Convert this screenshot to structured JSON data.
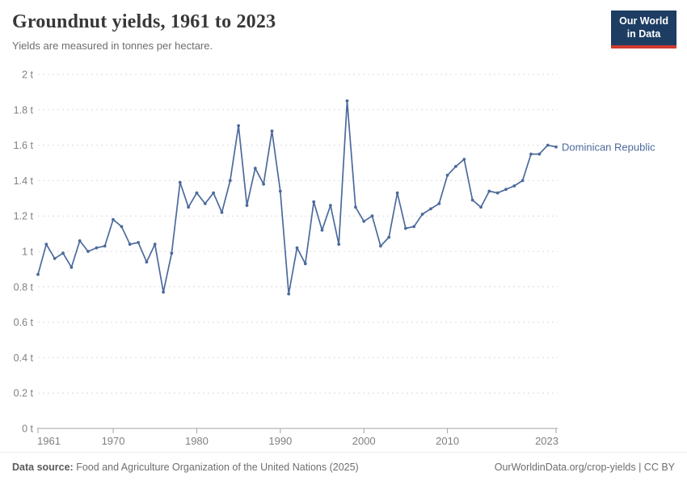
{
  "header": {
    "title": "Groundnut yields, 1961 to 2023",
    "subtitle": "Yields are measured in tonnes per hectare."
  },
  "logo": {
    "line1": "Our World",
    "line2": "in Data"
  },
  "chart_data": {
    "type": "line",
    "title": "Groundnut yields, 1961 to 2023",
    "ylabel": "",
    "xlabel": "",
    "unit": "t",
    "grid": true,
    "legend_position": "right-of-line-end",
    "xlim": [
      1961,
      2023
    ],
    "ylim": [
      0,
      2
    ],
    "x_ticks": [
      1961,
      1970,
      1980,
      1990,
      2000,
      2010,
      2023
    ],
    "x_tick_labels": [
      "1961",
      "1970",
      "1980",
      "1990",
      "2000",
      "2010",
      "2023"
    ],
    "y_ticks": [
      0,
      0.2,
      0.4,
      0.6,
      0.8,
      1,
      1.2,
      1.4,
      1.6,
      1.8,
      2
    ],
    "y_tick_labels": [
      "0 t",
      "0.2 t",
      "0.4 t",
      "0.6 t",
      "0.8 t",
      "1 t",
      "1.2 t",
      "1.4 t",
      "1.6 t",
      "1.8 t",
      "2 t"
    ],
    "series": [
      {
        "name": "Dominican Republic",
        "color": "#4C6A9C",
        "x": [
          1961,
          1962,
          1963,
          1964,
          1965,
          1966,
          1967,
          1968,
          1969,
          1970,
          1971,
          1972,
          1973,
          1974,
          1975,
          1976,
          1977,
          1978,
          1979,
          1980,
          1981,
          1982,
          1983,
          1984,
          1985,
          1986,
          1987,
          1988,
          1989,
          1990,
          1991,
          1992,
          1993,
          1994,
          1995,
          1996,
          1997,
          1998,
          1999,
          2000,
          2001,
          2002,
          2003,
          2004,
          2005,
          2006,
          2007,
          2008,
          2009,
          2010,
          2011,
          2012,
          2013,
          2014,
          2015,
          2016,
          2017,
          2018,
          2019,
          2020,
          2021,
          2022,
          2023
        ],
        "values": [
          0.87,
          1.04,
          0.96,
          0.99,
          0.91,
          1.06,
          1.0,
          1.02,
          1.03,
          1.18,
          1.14,
          1.04,
          1.05,
          0.94,
          1.04,
          0.77,
          0.99,
          1.39,
          1.25,
          1.33,
          1.27,
          1.33,
          1.22,
          1.4,
          1.71,
          1.26,
          1.47,
          1.38,
          1.68,
          1.34,
          0.76,
          1.02,
          0.93,
          1.28,
          1.12,
          1.26,
          1.04,
          1.85,
          1.25,
          1.17,
          1.2,
          1.03,
          1.08,
          1.33,
          1.13,
          1.14,
          1.21,
          1.24,
          1.27,
          1.43,
          1.48,
          1.52,
          1.29,
          1.25,
          1.34,
          1.33,
          1.35,
          1.37,
          1.4,
          1.55,
          1.55,
          1.6,
          1.59
        ]
      }
    ],
    "colors": {
      "line": "#4C6A9C",
      "gridline": "#dcdcdc",
      "axis": "#a3a3a3",
      "tick_label": "#808080"
    }
  },
  "footer": {
    "datasource_label": "Data source:",
    "datasource_text": " Food and Agriculture Organization of the United Nations (2025)",
    "link": "OurWorldinData.org/crop-yields",
    "separator": " | ",
    "license": "CC BY"
  }
}
